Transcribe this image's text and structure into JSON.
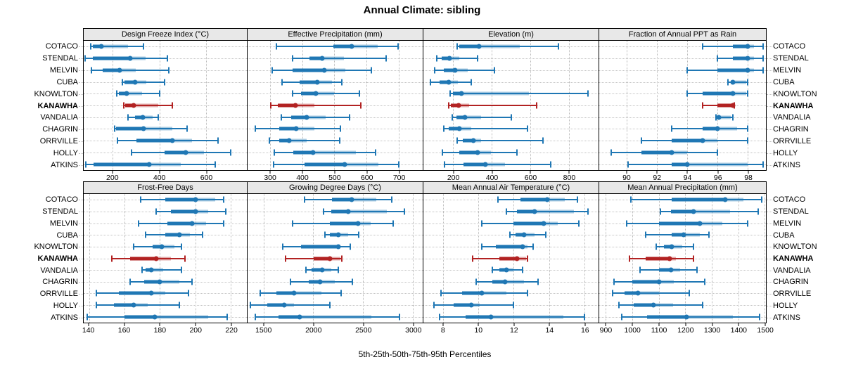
{
  "title": "Annual Climate: sibling",
  "caption": "5th-25th-50th-75th-95th Percentiles",
  "stations": [
    "COTACO",
    "STENDAL",
    "MELVIN",
    "CUBA",
    "KNOWLTON",
    "KANAWHA",
    "VANDALIA",
    "CHAGRIN",
    "ORRVILLE",
    "HOLLY",
    "ATKINS"
  ],
  "highlight_station": "KANAWHA",
  "colors": {
    "primary": "#1f77b4",
    "highlight": "#b22222",
    "strip_bg": "#e8e8e8",
    "grid": "#c2c2c2",
    "border": "#000000"
  },
  "chart_data": {
    "type": "percentile-interval-dotplot",
    "percentile_labels": [
      "5th",
      "25th",
      "50th",
      "75th",
      "95th"
    ],
    "categories": [
      "COTACO",
      "STENDAL",
      "MELVIN",
      "CUBA",
      "KNOWLTON",
      "KANAWHA",
      "VANDALIA",
      "CHAGRIN",
      "ORRVILLE",
      "HOLLY",
      "ATKINS"
    ],
    "layout": {
      "rows": 2,
      "cols": 4,
      "grid": "on",
      "gridstyle": "dotted"
    },
    "panels": [
      {
        "title": "Design Freeze Index (°C)",
        "xlim": [
          75,
          775
        ],
        "ticks": [
          200,
          400,
          600
        ],
        "series": [
          {
            "name": "COTACO",
            "values": [
              105,
              115,
              150,
              265,
              330
            ]
          },
          {
            "name": "STENDAL",
            "values": [
              80,
              115,
              273,
              340,
              433
            ]
          },
          {
            "name": "MELVIN",
            "values": [
              107,
              155,
              230,
              298,
              440
            ]
          },
          {
            "name": "CUBA",
            "values": [
              240,
              250,
              296,
              345,
              423
            ]
          },
          {
            "name": "KNOWLTON",
            "values": [
              216,
              226,
              260,
              324,
              400
            ]
          },
          {
            "name": "KANAWHA",
            "values": [
              247,
              252,
              288,
              394,
              455
            ]
          },
          {
            "name": "VANDALIA",
            "values": [
              264,
              296,
              327,
              372,
              394
            ]
          },
          {
            "name": "CHAGRIN",
            "values": [
              207,
              215,
              332,
              455,
              520
            ]
          },
          {
            "name": "ORRVILLE",
            "values": [
              219,
              300,
              455,
              540,
              650
            ]
          },
          {
            "name": "HOLLY",
            "values": [
              281,
              423,
              511,
              592,
              707
            ]
          },
          {
            "name": "ATKINS",
            "values": [
              85,
              117,
              356,
              492,
              640
            ]
          }
        ]
      },
      {
        "title": "Effective Precipitation (mm)",
        "xlim": [
          230,
          775
        ],
        "ticks": [
          300,
          400,
          500,
          600,
          700
        ],
        "series": [
          {
            "name": "COTACO",
            "values": [
              319,
              498,
              553,
              636,
              699
            ]
          },
          {
            "name": "STENDAL",
            "values": [
              371,
              422,
              461,
              530,
              662
            ]
          },
          {
            "name": "MELVIN",
            "values": [
              307,
              371,
              469,
              535,
              616
            ]
          },
          {
            "name": "CUBA",
            "values": [
              337,
              393,
              447,
              493,
              523
            ]
          },
          {
            "name": "KNOWLTON",
            "values": [
              369,
              396,
              442,
              499,
              577
            ]
          },
          {
            "name": "KANAWHA",
            "values": [
              302,
              324,
              379,
              439,
              583
            ]
          },
          {
            "name": "VANDALIA",
            "values": [
              335,
              366,
              414,
              474,
              548
            ]
          },
          {
            "name": "CHAGRIN",
            "values": [
              254,
              328,
              381,
              437,
              518
            ]
          },
          {
            "name": "ORRVILLE",
            "values": [
              297,
              328,
              359,
              413,
              516
            ]
          },
          {
            "name": "HOLLY",
            "values": [
              314,
              373,
              434,
              567,
              628
            ]
          },
          {
            "name": "ATKINS",
            "values": [
              310,
              407,
              531,
              638,
              700
            ]
          }
        ]
      },
      {
        "title": "Elevation (m)",
        "xlim": [
          45,
          955
        ],
        "ticks": [
          200,
          400,
          600,
          800
        ],
        "series": [
          {
            "name": "COTACO",
            "values": [
              222,
              232,
              335,
              545,
              745
            ]
          },
          {
            "name": "STENDAL",
            "values": [
              115,
              140,
              180,
              230,
              325
            ]
          },
          {
            "name": "MELVIN",
            "values": [
              105,
              150,
              211,
              275,
              415
            ]
          },
          {
            "name": "CUBA",
            "values": [
              80,
              130,
              175,
              225,
              295
            ]
          },
          {
            "name": "KNOWLTON",
            "values": [
              185,
              200,
              241,
              595,
              900
            ]
          },
          {
            "name": "KANAWHA",
            "values": [
              175,
              187,
              229,
              283,
              633
            ]
          },
          {
            "name": "VANDALIA",
            "values": [
              195,
              215,
              260,
              345,
              500
            ]
          },
          {
            "name": "CHAGRIN",
            "values": [
              150,
              175,
              230,
              295,
              585
            ]
          },
          {
            "name": "ORRVILLE",
            "values": [
              220,
              250,
              305,
              345,
              665
            ]
          },
          {
            "name": "HOLLY",
            "values": [
              145,
              230,
              325,
              395,
              530
            ]
          },
          {
            "name": "ATKINS",
            "values": [
              155,
              255,
              365,
              470,
              705
            ]
          }
        ]
      },
      {
        "title": "Fraction of Annual PPT as Rain",
        "xlim": [
          88.2,
          99.2
        ],
        "ticks": [
          90,
          92,
          94,
          96,
          98
        ],
        "series": [
          {
            "name": "COTACO",
            "values": [
              95,
              97,
              98,
              98.4,
              99
            ]
          },
          {
            "name": "STENDAL",
            "values": [
              96,
              97,
              98,
              98.4,
              99
            ]
          },
          {
            "name": "MELVIN",
            "values": [
              94,
              96,
              98,
              98.4,
              99
            ]
          },
          {
            "name": "CUBA",
            "values": [
              96.7,
              96.9,
              97,
              97.9,
              98
            ]
          },
          {
            "name": "KNOWLTON",
            "values": [
              94,
              95,
              97,
              97.9,
              98
            ]
          },
          {
            "name": "KANAWHA",
            "values": [
              95,
              96,
              97,
              97,
              97.1
            ]
          },
          {
            "name": "VANDALIA",
            "values": [
              95.9,
              96,
              96.1,
              96.9,
              97
            ]
          },
          {
            "name": "CHAGRIN",
            "values": [
              93,
              95,
              96,
              97.3,
              98
            ]
          },
          {
            "name": "ORRVILLE",
            "values": [
              91,
              93,
              95,
              96,
              98
            ]
          },
          {
            "name": "HOLLY",
            "values": [
              89,
              91,
              93,
              94,
              96
            ]
          },
          {
            "name": "ATKINS",
            "values": [
              90.1,
              93,
              94,
              98,
              99
            ]
          }
        ]
      },
      {
        "title": "Frost-Free Days",
        "xlim": [
          137,
          229
        ],
        "ticks": [
          140,
          160,
          180,
          200,
          220
        ],
        "series": [
          {
            "name": "COTACO",
            "values": [
              169,
              183,
              200,
              211,
              216
            ]
          },
          {
            "name": "STENDAL",
            "values": [
              178,
              186,
              200,
              207,
              217
            ]
          },
          {
            "name": "MELVIN",
            "values": [
              168,
              184,
              198,
              206,
              216
            ]
          },
          {
            "name": "CUBA",
            "values": [
              172,
              183,
              191,
              197,
              204
            ]
          },
          {
            "name": "KNOWLTON",
            "values": [
              165,
              176,
              181,
              188,
              192
            ]
          },
          {
            "name": "KANAWHA",
            "values": [
              153,
              163,
              178,
              186,
              194
            ]
          },
          {
            "name": "VANDALIA",
            "values": [
              170,
              172,
              175,
              182,
              192
            ]
          },
          {
            "name": "CHAGRIN",
            "values": [
              163,
              171,
              180,
              191,
              198
            ]
          },
          {
            "name": "ORRVILLE",
            "values": [
              144,
              157,
              175,
              183,
              196
            ]
          },
          {
            "name": "HOLLY",
            "values": [
              144,
              154,
              165,
              173,
              191
            ]
          },
          {
            "name": "ATKINS",
            "values": [
              139,
              160,
              177,
              207,
              218
            ]
          }
        ]
      },
      {
        "title": "Growing Degree Days (°C)",
        "xlim": [
          1340,
          3100
        ],
        "ticks": [
          1500,
          2000,
          2500,
          3000
        ],
        "series": [
          {
            "name": "COTACO",
            "values": [
              1910,
              2190,
              2385,
              2635,
              2790
            ]
          },
          {
            "name": "STENDAL",
            "values": [
              2100,
              2180,
              2350,
              2740,
              2915
            ]
          },
          {
            "name": "MELVIN",
            "values": [
              1790,
              2165,
              2450,
              2575,
              2805
            ]
          },
          {
            "name": "CUBA",
            "values": [
              2115,
              2165,
              2255,
              2350,
              2460
            ]
          },
          {
            "name": "KNOWLTON",
            "values": [
              1690,
              1880,
              2250,
              2270,
              2375
            ]
          },
          {
            "name": "KANAWHA",
            "values": [
              1720,
              2005,
              2170,
              2275,
              2290
            ]
          },
          {
            "name": "VANDALIA",
            "values": [
              1925,
              1980,
              2090,
              2180,
              2250
            ]
          },
          {
            "name": "CHAGRIN",
            "values": [
              1770,
              1955,
              2065,
              2215,
              2395
            ]
          },
          {
            "name": "ORRVILLE",
            "values": [
              1470,
              1630,
              1810,
              2080,
              2280
            ]
          },
          {
            "name": "HOLLY",
            "values": [
              1370,
              1535,
              1705,
              1810,
              2170
            ]
          },
          {
            "name": "ATKINS",
            "values": [
              1420,
              1650,
              1860,
              2585,
              2870
            ]
          }
        ]
      },
      {
        "title": "Mean Annual Air Temperature (°C)",
        "xlim": [
          6.9,
          16.8
        ],
        "ticks": [
          8,
          10,
          12,
          14,
          16
        ],
        "series": [
          {
            "name": "COTACO",
            "values": [
              11.1,
              12.4,
              13.9,
              14.9,
              15.6
            ]
          },
          {
            "name": "STENDAL",
            "values": [
              11.6,
              12.2,
              13.2,
              15.4,
              16.2
            ]
          },
          {
            "name": "MELVIN",
            "values": [
              10.2,
              12.0,
              13.7,
              14.5,
              15.7
            ]
          },
          {
            "name": "CUBA",
            "values": [
              11.8,
              12.1,
              12.6,
              13.2,
              13.8
            ]
          },
          {
            "name": "KNOWLTON",
            "values": [
              10.2,
              11.0,
              12.5,
              12.8,
              13.1
            ]
          },
          {
            "name": "KANAWHA",
            "values": [
              9.7,
              11.2,
              12.2,
              12.7,
              12.8
            ]
          },
          {
            "name": "VANDALIA",
            "values": [
              10.8,
              11.2,
              11.6,
              12.0,
              12.5
            ]
          },
          {
            "name": "CHAGRIN",
            "values": [
              9.9,
              10.8,
              11.5,
              12.6,
              13.4
            ]
          },
          {
            "name": "ORRVILLE",
            "values": [
              7.9,
              9.1,
              10.2,
              11.6,
              12.8
            ]
          },
          {
            "name": "HOLLY",
            "values": [
              7.5,
              8.6,
              9.6,
              10.1,
              12.0
            ]
          },
          {
            "name": "ATKINS",
            "values": [
              7.8,
              9.3,
              10.7,
              14.8,
              16.0
            ]
          }
        ]
      },
      {
        "title": "Mean Annual Precipitation (mm)",
        "xlim": [
          875,
          1505
        ],
        "ticks": [
          900,
          1000,
          1100,
          1200,
          1300,
          1400,
          1500
        ],
        "series": [
          {
            "name": "COTACO",
            "values": [
              995,
              1150,
              1350,
              1420,
              1490
            ]
          },
          {
            "name": "STENDAL",
            "values": [
              1105,
              1145,
              1230,
              1370,
              1475
            ]
          },
          {
            "name": "MELVIN",
            "values": [
              980,
              1100,
              1255,
              1340,
              1435
            ]
          },
          {
            "name": "CUBA",
            "values": [
              1050,
              1150,
              1195,
              1255,
              1290
            ]
          },
          {
            "name": "KNOWLTON",
            "values": [
              1090,
              1120,
              1150,
              1190,
              1230
            ]
          },
          {
            "name": "KANAWHA",
            "values": [
              990,
              1050,
              1140,
              1165,
              1230
            ]
          },
          {
            "name": "VANDALIA",
            "values": [
              1030,
              1100,
              1145,
              1180,
              1245
            ]
          },
          {
            "name": "CHAGRIN",
            "values": [
              930,
              1000,
              1100,
              1158,
              1275
            ]
          },
          {
            "name": "ORRVILLE",
            "values": [
              925,
              970,
              1020,
              1100,
              1215
            ]
          },
          {
            "name": "HOLLY",
            "values": [
              950,
              1005,
              1080,
              1155,
              1265
            ]
          },
          {
            "name": "ATKINS",
            "values": [
              960,
              1055,
              1205,
              1380,
              1480
            ]
          }
        ]
      }
    ]
  }
}
